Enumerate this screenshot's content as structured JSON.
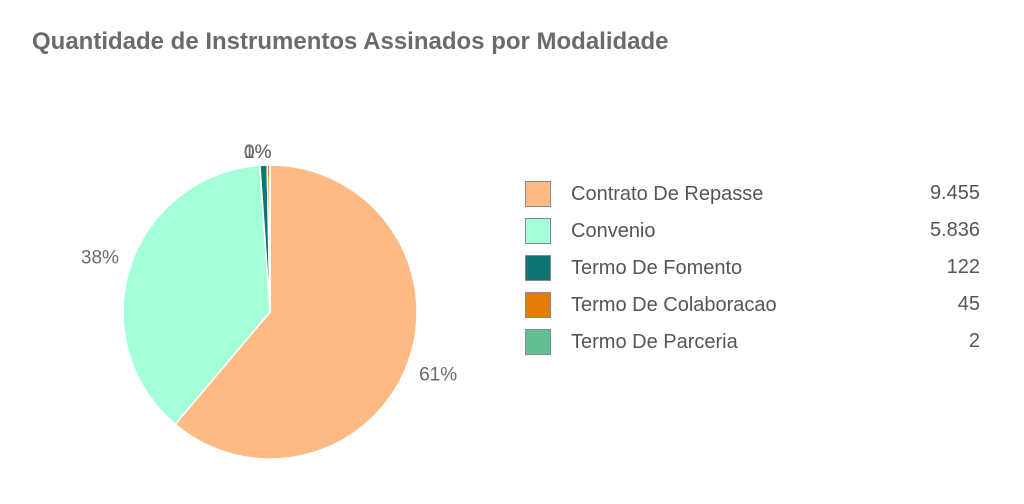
{
  "title": "Quantidade de Instrumentos Assinados por Modalidade",
  "chart_data": {
    "type": "pie",
    "title": "Quantidade de Instrumentos Assinados por Modalidade",
    "legend_placement": "right",
    "slices": [
      {
        "label": "Contrato De Repasse",
        "value": 9455,
        "value_text": "9.455",
        "percent_label": "61%",
        "color": "#FFBA84"
      },
      {
        "label": "Convenio",
        "value": 5836,
        "value_text": "5.836",
        "percent_label": "38%",
        "color": "#A4FFD9"
      },
      {
        "label": "Termo De Fomento",
        "value": 122,
        "value_text": "122",
        "percent_label": "1%",
        "color": "#0D7673"
      },
      {
        "label": "Termo De Colaboracao",
        "value": 45,
        "value_text": "45",
        "percent_label": "0%",
        "color": "#E57C08"
      },
      {
        "label": "Termo De Parceria",
        "value": 2,
        "value_text": "2",
        "percent_label": "0%",
        "color": "#62BF8E"
      }
    ]
  }
}
